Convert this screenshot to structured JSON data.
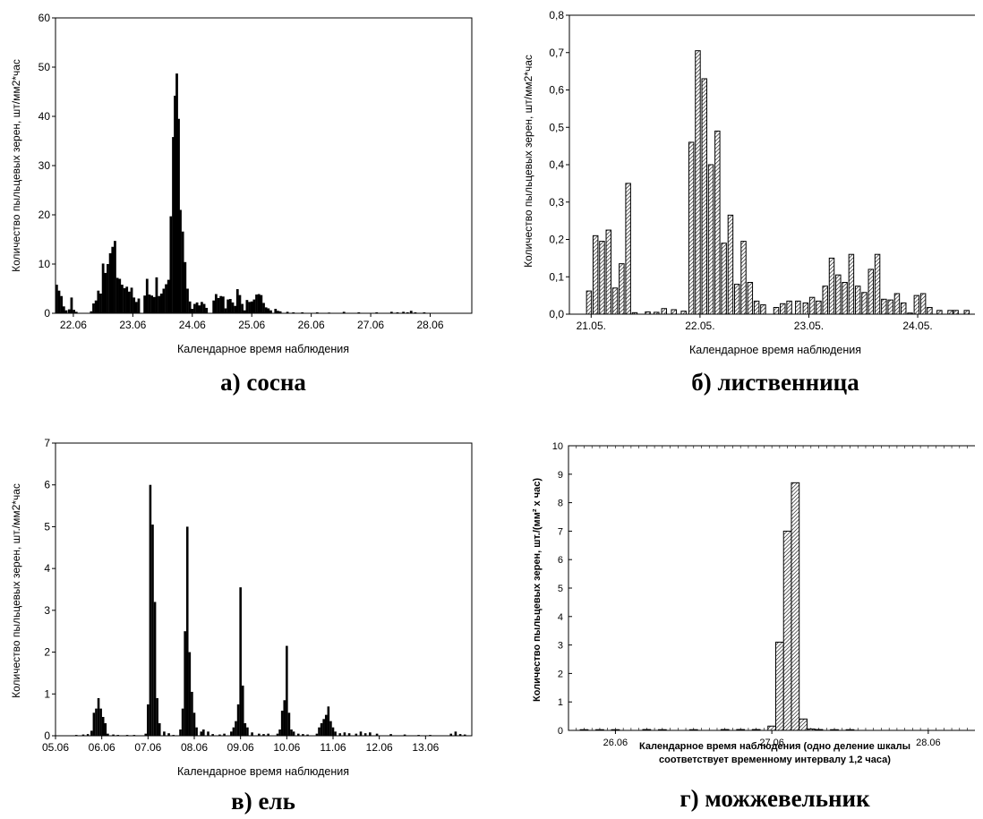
{
  "panels": [
    {
      "caption": "а) сосна",
      "ylabel": "Количество пыльцевых зерен, шт/мм2*час",
      "xlabel": "Календарное время наблюдения",
      "xlabel_line2": "",
      "bold_labels": false
    },
    {
      "caption": "б) лиственница",
      "ylabel": "Количество пыльцевых зерен, шт/мм2*час",
      "xlabel": "Календарное время наблюдения",
      "xlabel_line2": "",
      "bold_labels": false
    },
    {
      "caption": "в) ель",
      "ylabel": "Количество пыльцевых зерен, шт./мм2*час",
      "xlabel": "Календарное время наблюдения",
      "xlabel_line2": "",
      "bold_labels": false
    },
    {
      "caption": "г) можжевельник",
      "ylabel": "Количество пыльцевых зерен, шт./(мм² х час)",
      "xlabel": "Календарное время наблюдения (одно деление шкалы",
      "xlabel_line2": "соответствует временному интервалу 1,2 часа)",
      "bold_labels": true
    }
  ],
  "chart_data": [
    {
      "type": "bar",
      "bar_style": "solid",
      "bar_color": "#000000",
      "ylim": [
        0,
        60
      ],
      "yticks": [
        0,
        10,
        20,
        30,
        40,
        50,
        60
      ],
      "ytick_labels": [
        "0",
        "10",
        "20",
        "30",
        "40",
        "50",
        "60"
      ],
      "xlim": [
        21.7,
        28.7
      ],
      "xticks": [
        22,
        23,
        24,
        25,
        26,
        27,
        28
      ],
      "xtick_labels": [
        "22.06",
        "23.06",
        "24.06",
        "25.06",
        "26.06",
        "27.06",
        "28.06"
      ],
      "bar_width": 0.042,
      "points": [
        [
          21.72,
          5.8
        ],
        [
          21.76,
          4.6
        ],
        [
          21.8,
          3.5
        ],
        [
          21.84,
          1.4
        ],
        [
          21.88,
          0.6
        ],
        [
          21.93,
          0.8
        ],
        [
          21.97,
          3.2
        ],
        [
          22.01,
          0.7
        ],
        [
          22.05,
          0.3
        ],
        [
          22.3,
          0.4
        ],
        [
          22.34,
          2.0
        ],
        [
          22.38,
          2.6
        ],
        [
          22.42,
          4.6
        ],
        [
          22.46,
          4.0
        ],
        [
          22.5,
          10.1
        ],
        [
          22.54,
          8.2
        ],
        [
          22.58,
          10.0
        ],
        [
          22.62,
          12.2
        ],
        [
          22.66,
          13.5
        ],
        [
          22.7,
          14.7
        ],
        [
          22.74,
          7.2
        ],
        [
          22.78,
          7.0
        ],
        [
          22.82,
          5.8
        ],
        [
          22.86,
          5.1
        ],
        [
          22.9,
          5.4
        ],
        [
          22.94,
          4.4
        ],
        [
          22.98,
          5.2
        ],
        [
          23.02,
          3.2
        ],
        [
          23.06,
          2.3
        ],
        [
          23.1,
          3.0
        ],
        [
          23.2,
          3.6
        ],
        [
          23.24,
          7.0
        ],
        [
          23.28,
          3.8
        ],
        [
          23.32,
          3.6
        ],
        [
          23.36,
          3.3
        ],
        [
          23.4,
          7.3
        ],
        [
          23.44,
          3.5
        ],
        [
          23.48,
          4.0
        ],
        [
          23.52,
          5.0
        ],
        [
          23.56,
          5.9
        ],
        [
          23.6,
          6.8
        ],
        [
          23.64,
          19.7
        ],
        [
          23.68,
          35.8
        ],
        [
          23.71,
          44.2
        ],
        [
          23.74,
          48.7
        ],
        [
          23.77,
          39.5
        ],
        [
          23.8,
          21.0
        ],
        [
          23.84,
          16.6
        ],
        [
          23.88,
          10.4
        ],
        [
          23.92,
          5.0
        ],
        [
          23.96,
          2.4
        ],
        [
          24.0,
          0.9
        ],
        [
          24.04,
          1.9
        ],
        [
          24.08,
          2.2
        ],
        [
          24.12,
          1.6
        ],
        [
          24.16,
          2.3
        ],
        [
          24.2,
          1.9
        ],
        [
          24.24,
          1.1
        ],
        [
          24.36,
          2.6
        ],
        [
          24.4,
          3.9
        ],
        [
          24.44,
          3.1
        ],
        [
          24.48,
          3.5
        ],
        [
          24.52,
          3.4
        ],
        [
          24.56,
          1.0
        ],
        [
          24.6,
          2.8
        ],
        [
          24.64,
          2.9
        ],
        [
          24.68,
          2.2
        ],
        [
          24.72,
          1.5
        ],
        [
          24.76,
          4.9
        ],
        [
          24.8,
          3.7
        ],
        [
          24.84,
          1.9
        ],
        [
          24.88,
          0.6
        ],
        [
          24.92,
          2.7
        ],
        [
          24.96,
          2.3
        ],
        [
          25.0,
          2.4
        ],
        [
          25.04,
          2.8
        ],
        [
          25.08,
          3.8
        ],
        [
          25.12,
          3.9
        ],
        [
          25.16,
          3.7
        ],
        [
          25.2,
          2.1
        ],
        [
          25.24,
          1.2
        ],
        [
          25.28,
          1.0
        ],
        [
          25.32,
          0.6
        ],
        [
          25.4,
          0.9
        ],
        [
          25.44,
          0.5
        ],
        [
          25.48,
          0.4
        ],
        [
          25.6,
          0.3
        ],
        [
          25.7,
          0.2
        ],
        [
          25.85,
          0.2
        ],
        [
          26.1,
          0.2
        ],
        [
          26.3,
          0.1
        ],
        [
          26.55,
          0.3
        ],
        [
          26.8,
          0.2
        ],
        [
          27.1,
          0.2
        ],
        [
          27.35,
          0.3
        ],
        [
          27.45,
          0.2
        ],
        [
          27.55,
          0.3
        ],
        [
          27.62,
          0.2
        ],
        [
          27.68,
          0.5
        ],
        [
          27.75,
          0.2
        ],
        [
          27.9,
          0.2
        ]
      ]
    },
    {
      "type": "bar",
      "bar_style": "hatched",
      "ylim": [
        0,
        0.8
      ],
      "yticks": [
        0,
        0.1,
        0.2,
        0.3,
        0.4,
        0.5,
        0.6,
        0.7,
        0.8
      ],
      "ytick_labels": [
        "0,0",
        "0,1",
        "0,2",
        "0,3",
        "0,4",
        "0,5",
        "0,6",
        "0,7",
        "0,8"
      ],
      "xlim": [
        20.8,
        24.6
      ],
      "xticks": [
        21,
        22,
        23,
        24
      ],
      "xtick_labels": [
        "21.05.",
        "22.05.",
        "23.05.",
        "24.05."
      ],
      "bar_width": 0.045,
      "points": [
        [
          20.98,
          0.062
        ],
        [
          21.04,
          0.21
        ],
        [
          21.1,
          0.195
        ],
        [
          21.16,
          0.225
        ],
        [
          21.22,
          0.07
        ],
        [
          21.28,
          0.135
        ],
        [
          21.34,
          0.35
        ],
        [
          21.4,
          0.004
        ],
        [
          21.52,
          0.006
        ],
        [
          21.6,
          0.005
        ],
        [
          21.67,
          0.015
        ],
        [
          21.76,
          0.012
        ],
        [
          21.85,
          0.008
        ],
        [
          21.92,
          0.46
        ],
        [
          21.98,
          0.705
        ],
        [
          22.04,
          0.63
        ],
        [
          22.1,
          0.4
        ],
        [
          22.16,
          0.49
        ],
        [
          22.22,
          0.19
        ],
        [
          22.28,
          0.265
        ],
        [
          22.34,
          0.08
        ],
        [
          22.4,
          0.195
        ],
        [
          22.46,
          0.085
        ],
        [
          22.52,
          0.035
        ],
        [
          22.58,
          0.025
        ],
        [
          22.7,
          0.018
        ],
        [
          22.76,
          0.028
        ],
        [
          22.82,
          0.035
        ],
        [
          22.9,
          0.035
        ],
        [
          22.97,
          0.03
        ],
        [
          23.03,
          0.045
        ],
        [
          23.09,
          0.035
        ],
        [
          23.15,
          0.075
        ],
        [
          23.21,
          0.15
        ],
        [
          23.27,
          0.105
        ],
        [
          23.33,
          0.085
        ],
        [
          23.39,
          0.16
        ],
        [
          23.45,
          0.075
        ],
        [
          23.51,
          0.058
        ],
        [
          23.57,
          0.12
        ],
        [
          23.63,
          0.16
        ],
        [
          23.69,
          0.04
        ],
        [
          23.75,
          0.038
        ],
        [
          23.81,
          0.055
        ],
        [
          23.87,
          0.03
        ],
        [
          23.93,
          0.003
        ],
        [
          23.99,
          0.05
        ],
        [
          24.05,
          0.055
        ],
        [
          24.11,
          0.018
        ],
        [
          24.2,
          0.01
        ],
        [
          24.3,
          0.01
        ],
        [
          24.35,
          0.01
        ],
        [
          24.45,
          0.01
        ]
      ]
    },
    {
      "type": "bar",
      "bar_style": "solid",
      "bar_color": "#000000",
      "ylim": [
        0,
        7
      ],
      "yticks": [
        0,
        1,
        2,
        3,
        4,
        5,
        6,
        7
      ],
      "ytick_labels": [
        "0",
        "1",
        "2",
        "3",
        "4",
        "5",
        "6",
        "7"
      ],
      "xlim": [
        5,
        14
      ],
      "xticks": [
        5,
        6,
        7,
        8,
        9,
        10,
        11,
        12,
        13
      ],
      "xtick_labels": [
        "05.06",
        "06.06",
        "07.06",
        "08.06",
        "09.06",
        "10.06",
        "11.06",
        "12.06",
        "13.06"
      ],
      "bar_width": 0.05,
      "points": [
        [
          5.45,
          0.02
        ],
        [
          5.6,
          0.03
        ],
        [
          5.7,
          0.04
        ],
        [
          5.78,
          0.12
        ],
        [
          5.83,
          0.55
        ],
        [
          5.88,
          0.65
        ],
        [
          5.93,
          0.9
        ],
        [
          5.98,
          0.65
        ],
        [
          6.03,
          0.45
        ],
        [
          6.08,
          0.3
        ],
        [
          6.13,
          0.05
        ],
        [
          6.25,
          0.03
        ],
        [
          6.35,
          0.02
        ],
        [
          6.55,
          0.02
        ],
        [
          6.7,
          0.02
        ],
        [
          6.95,
          0.05
        ],
        [
          7.0,
          0.75
        ],
        [
          7.05,
          6.0
        ],
        [
          7.1,
          5.05
        ],
        [
          7.15,
          3.2
        ],
        [
          7.2,
          0.9
        ],
        [
          7.25,
          0.3
        ],
        [
          7.35,
          0.1
        ],
        [
          7.45,
          0.06
        ],
        [
          7.55,
          0.02
        ],
        [
          7.7,
          0.15
        ],
        [
          7.75,
          0.65
        ],
        [
          7.8,
          2.5
        ],
        [
          7.85,
          5.0
        ],
        [
          7.9,
          2.0
        ],
        [
          7.95,
          1.05
        ],
        [
          8.0,
          0.55
        ],
        [
          8.05,
          0.2
        ],
        [
          8.15,
          0.1
        ],
        [
          8.2,
          0.15
        ],
        [
          8.3,
          0.1
        ],
        [
          8.4,
          0.04
        ],
        [
          8.55,
          0.03
        ],
        [
          8.65,
          0.05
        ],
        [
          8.8,
          0.1
        ],
        [
          8.85,
          0.2
        ],
        [
          8.9,
          0.35
        ],
        [
          8.95,
          0.75
        ],
        [
          9.0,
          3.55
        ],
        [
          9.05,
          1.2
        ],
        [
          9.1,
          0.3
        ],
        [
          9.15,
          0.2
        ],
        [
          9.25,
          0.08
        ],
        [
          9.4,
          0.05
        ],
        [
          9.5,
          0.04
        ],
        [
          9.6,
          0.05
        ],
        [
          9.8,
          0.05
        ],
        [
          9.85,
          0.15
        ],
        [
          9.9,
          0.6
        ],
        [
          9.95,
          0.85
        ],
        [
          10.0,
          2.15
        ],
        [
          10.05,
          0.55
        ],
        [
          10.1,
          0.15
        ],
        [
          10.15,
          0.1
        ],
        [
          10.25,
          0.05
        ],
        [
          10.35,
          0.04
        ],
        [
          10.45,
          0.03
        ],
        [
          10.65,
          0.05
        ],
        [
          10.7,
          0.2
        ],
        [
          10.75,
          0.3
        ],
        [
          10.8,
          0.4
        ],
        [
          10.85,
          0.5
        ],
        [
          10.9,
          0.7
        ],
        [
          10.95,
          0.35
        ],
        [
          11.0,
          0.2
        ],
        [
          11.05,
          0.1
        ],
        [
          11.15,
          0.06
        ],
        [
          11.25,
          0.08
        ],
        [
          11.35,
          0.06
        ],
        [
          11.5,
          0.05
        ],
        [
          11.6,
          0.1
        ],
        [
          11.7,
          0.06
        ],
        [
          11.8,
          0.08
        ],
        [
          11.95,
          0.05
        ],
        [
          12.25,
          0.04
        ],
        [
          12.55,
          0.03
        ],
        [
          12.85,
          0.02
        ],
        [
          13.1,
          0.02
        ],
        [
          13.55,
          0.05
        ],
        [
          13.65,
          0.1
        ],
        [
          13.75,
          0.04
        ],
        [
          13.85,
          0.03
        ]
      ]
    },
    {
      "type": "bar",
      "bar_style": "hatched",
      "ylim": [
        0,
        10
      ],
      "yticks": [
        0,
        1,
        2,
        3,
        4,
        5,
        6,
        7,
        8,
        9,
        10
      ],
      "ytick_labels": [
        "0",
        "1",
        "2",
        "3",
        "4",
        "5",
        "6",
        "7",
        "8",
        "9",
        "10"
      ],
      "xlim": [
        25.7,
        28.35
      ],
      "xticks": [
        26,
        27,
        28
      ],
      "xtick_labels": [
        "26.06",
        "27.06",
        "28.06"
      ],
      "minor_tick_step": 0.05,
      "bar_width": 0.05,
      "points": [
        [
          25.8,
          0.02
        ],
        [
          25.9,
          0.02
        ],
        [
          26.0,
          0.02
        ],
        [
          26.2,
          0.03
        ],
        [
          26.3,
          0.02
        ],
        [
          26.5,
          0.02
        ],
        [
          26.7,
          0.03
        ],
        [
          26.8,
          0.03
        ],
        [
          26.9,
          0.03
        ],
        [
          27.0,
          0.15
        ],
        [
          27.05,
          3.1
        ],
        [
          27.1,
          7.0
        ],
        [
          27.15,
          8.7
        ],
        [
          27.2,
          0.4
        ],
        [
          27.25,
          0.05
        ],
        [
          27.3,
          0.03
        ],
        [
          27.4,
          0.02
        ],
        [
          27.5,
          0.02
        ]
      ]
    }
  ]
}
